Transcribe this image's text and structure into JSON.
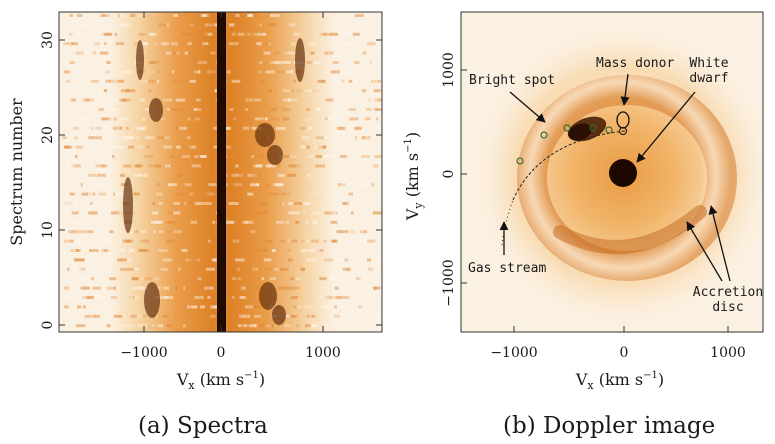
{
  "panel_a": {
    "x_ticks": [
      "−1000",
      "0",
      "1000"
    ],
    "y_ticks": [
      "0",
      "10",
      "20",
      "30"
    ],
    "xlabel_main": "V",
    "xlabel_sub": "x",
    "xlabel_unit": " (km s",
    "xlabel_exp": "−1",
    "xlabel_close": ")",
    "ylabel": "Spectrum number",
    "caption": "(a) Spectra"
  },
  "panel_b": {
    "x_ticks": [
      "−1000",
      "0",
      "1000"
    ],
    "y_ticks": [
      "1000",
      "0",
      "−1000"
    ],
    "xlabel_main": "V",
    "xlabel_sub": "x",
    "xlabel_unit": " (km s",
    "xlabel_exp": "−1",
    "xlabel_close": ")",
    "ylabel_main": "V",
    "ylabel_sub": "y",
    "ylabel_unit": " (km s",
    "ylabel_exp": "−1",
    "ylabel_close": ")",
    "annotations": {
      "bright_spot": "Bright spot",
      "mass_donor": "Mass donor",
      "white_dwarf_1": "White",
      "white_dwarf_2": "dwarf",
      "gas_stream": "Gas stream",
      "accretion_1": "Accretion",
      "accretion_2": "disc"
    },
    "caption": "(b) Doppler image"
  },
  "colors": {
    "emission_dark": "#5a2606",
    "emission_mid": "#d7761d",
    "emission_light": "#f3c48a",
    "background": "#fbf1e2"
  },
  "icons": [
    "arrow-icon"
  ]
}
